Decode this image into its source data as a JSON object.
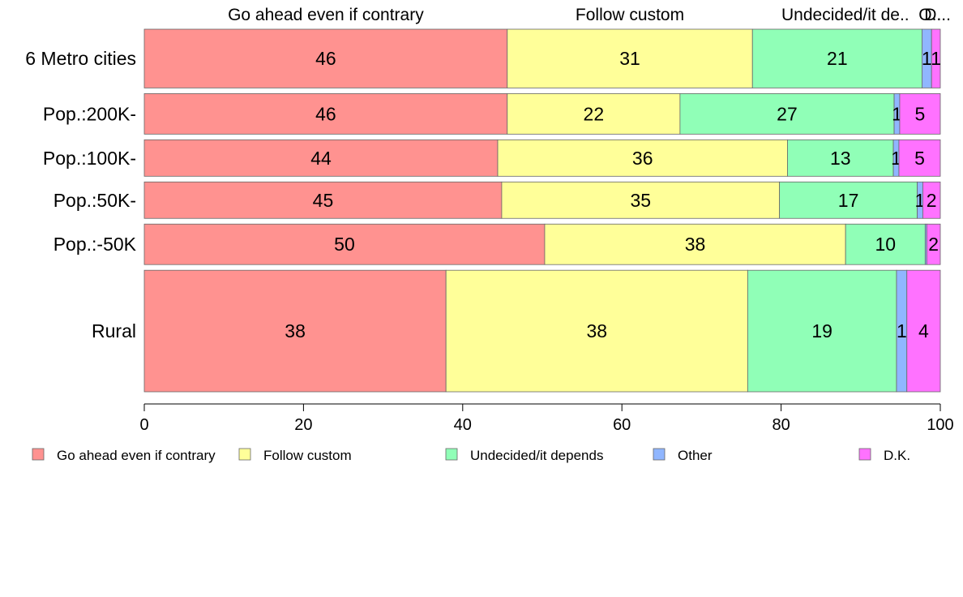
{
  "chart_data": {
    "type": "bar",
    "orientation": "horizontal",
    "stacked": true,
    "categories": [
      "6 Metro cities",
      "Pop.:200K-",
      "Pop.:100K-",
      "Pop.:50K-",
      "Pop.:-50K",
      "Rural"
    ],
    "category_weights": [
      1.45,
      1.0,
      0.9,
      0.9,
      1.0,
      3.0
    ],
    "series": [
      {
        "name": "Go ahead even if contrary",
        "color": "#ff9290",
        "values": [
          45.6,
          45.6,
          44.4,
          44.9,
          50.3,
          37.9
        ],
        "labels": [
          "46",
          "46",
          "44",
          "45",
          "50",
          "38"
        ]
      },
      {
        "name": "Follow custom",
        "color": "#ffff99",
        "values": [
          30.8,
          21.7,
          36.4,
          34.9,
          37.8,
          37.9
        ],
        "labels": [
          "31",
          "22",
          "36",
          "35",
          "38",
          "38"
        ]
      },
      {
        "name": "Undecided/it depends",
        "color": "#90ffb7",
        "values": [
          21.3,
          26.9,
          13.3,
          17.3,
          10.0,
          18.7
        ],
        "labels": [
          "21",
          "27",
          "13",
          "17",
          "10",
          "19"
        ]
      },
      {
        "name": "Other",
        "color": "#90b6ff",
        "values": [
          1.2,
          0.7,
          0.7,
          0.7,
          0.2,
          1.3
        ],
        "labels": [
          "1",
          "1",
          "1",
          "1",
          "",
          "1"
        ]
      },
      {
        "name": "D.K.",
        "color": "#ff72ff",
        "values": [
          1.1,
          5.1,
          5.2,
          2.2,
          1.7,
          4.2
        ],
        "labels": [
          "1",
          "5",
          "5",
          "2",
          "2",
          "4"
        ]
      }
    ],
    "top_labels": [
      "Go ahead even if contrary",
      "Follow custom",
      "Undecided/it de..",
      "O..",
      "D..."
    ],
    "xlim": [
      0,
      100
    ],
    "xticks": [
      "0",
      "20",
      "40",
      "60",
      "80",
      "100"
    ],
    "legend": {
      "position": "bottom",
      "items": [
        "Go ahead even if contrary",
        "Follow custom",
        "Undecided/it depends",
        "Other",
        "D.K."
      ]
    },
    "title": "",
    "xlabel": "",
    "ylabel": ""
  }
}
